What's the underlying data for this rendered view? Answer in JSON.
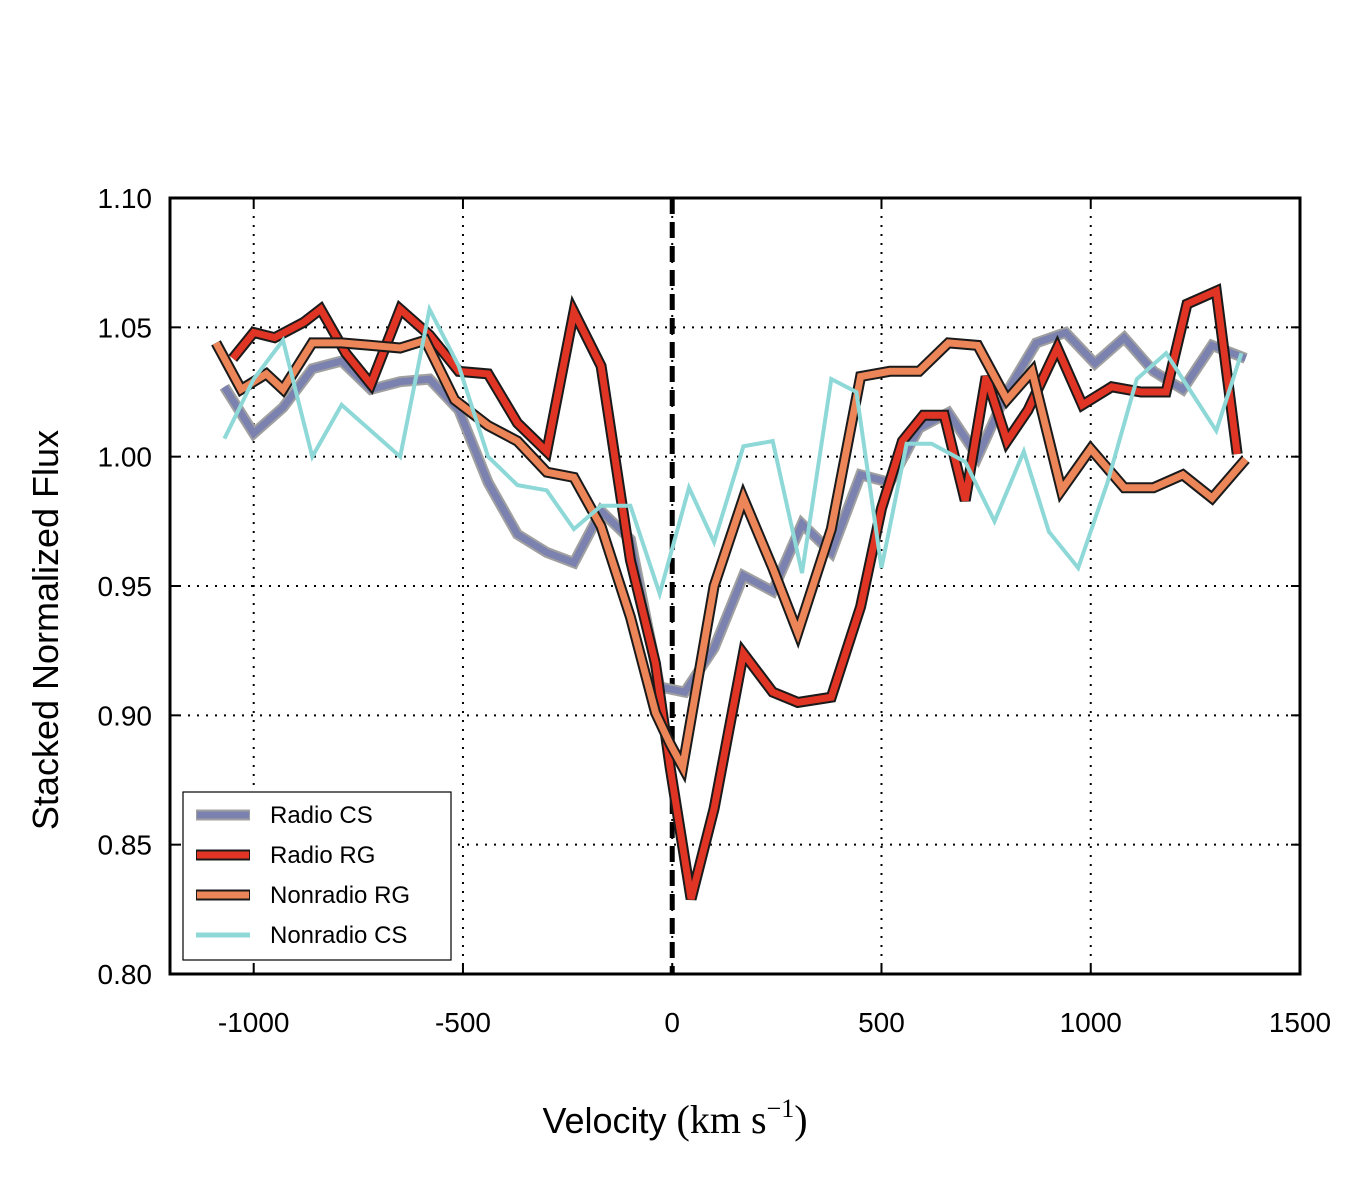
{
  "chart_data": {
    "type": "line",
    "xlabel_text": "Velocity ",
    "xlabel_unit_open": "(km s",
    "xlabel_unit_exp": "−1",
    "xlabel_unit_close": ")",
    "ylabel": "Stacked Normalized Flux",
    "xlim": [
      -1200,
      1500
    ],
    "ylim": [
      0.8,
      1.1
    ],
    "xticks": [
      -1000,
      -500,
      0,
      500,
      1000,
      1500
    ],
    "xtick_labels": [
      "-1000",
      "-500",
      "0",
      "500",
      "1000",
      "1500"
    ],
    "yticks": [
      0.8,
      0.85,
      0.9,
      0.95,
      1.0,
      1.05,
      1.1
    ],
    "ytick_labels": [
      "0.80",
      "0.85",
      "0.90",
      "0.95",
      "1.00",
      "1.05",
      "1.10"
    ],
    "grid": true,
    "vline_x": 0,
    "legend_position": "lower-left",
    "series": [
      {
        "name": "Radio CS",
        "color": "#7b82b0",
        "outline": "#a0a0a0",
        "x": [
          -1070,
          -1000,
          -930,
          -860,
          -790,
          -720,
          -650,
          -580,
          -510,
          -440,
          -370,
          -300,
          -235,
          -170,
          -100,
          -30,
          30,
          100,
          170,
          240,
          310,
          380,
          450,
          520,
          590,
          660,
          730,
          800,
          870,
          940,
          1010,
          1080,
          1150,
          1220,
          1290,
          1370
        ],
        "values": [
          1.027,
          1.009,
          1.019,
          1.034,
          1.037,
          1.026,
          1.029,
          1.03,
          1.018,
          0.99,
          0.97,
          0.963,
          0.959,
          0.979,
          0.968,
          0.911,
          0.909,
          0.926,
          0.954,
          0.948,
          0.974,
          0.963,
          0.993,
          0.99,
          1.011,
          1.017,
          1.0,
          1.025,
          1.044,
          1.048,
          1.036,
          1.046,
          1.033,
          1.026,
          1.043,
          1.038
        ]
      },
      {
        "name": "Radio RG",
        "color": "#e03424",
        "outline": "#1a1a1a",
        "x": [
          -1050,
          -1000,
          -950,
          -880,
          -840,
          -780,
          -720,
          -650,
          -580,
          -510,
          -440,
          -370,
          -300,
          -235,
          -170,
          -100,
          -40,
          -5,
          45,
          100,
          170,
          240,
          300,
          380,
          450,
          500,
          550,
          600,
          650,
          700,
          750,
          800,
          850,
          920,
          980,
          1050,
          1120,
          1180,
          1230,
          1300,
          1350
        ],
        "values": [
          1.038,
          1.048,
          1.046,
          1.052,
          1.057,
          1.04,
          1.028,
          1.057,
          1.047,
          1.033,
          1.032,
          1.013,
          1.002,
          1.056,
          1.035,
          0.96,
          0.92,
          0.88,
          0.829,
          0.864,
          0.924,
          0.909,
          0.905,
          0.907,
          0.942,
          0.98,
          1.006,
          1.016,
          1.016,
          0.983,
          1.031,
          1.006,
          1.018,
          1.042,
          1.02,
          1.027,
          1.025,
          1.025,
          1.059,
          1.064,
          1.001
        ]
      },
      {
        "name": "Nonradio RG",
        "color": "#ec8557",
        "outline": "#1a1a1a",
        "x": [
          -1090,
          -1030,
          -970,
          -930,
          -860,
          -790,
          -720,
          -650,
          -590,
          -520,
          -440,
          -370,
          -300,
          -235,
          -170,
          -100,
          -40,
          -5,
          25,
          100,
          170,
          240,
          300,
          380,
          450,
          520,
          590,
          660,
          730,
          800,
          860,
          930,
          1000,
          1080,
          1150,
          1220,
          1290,
          1370
        ],
        "values": [
          1.044,
          1.026,
          1.032,
          1.026,
          1.044,
          1.044,
          1.043,
          1.042,
          1.045,
          1.022,
          1.012,
          1.006,
          0.994,
          0.992,
          0.973,
          0.938,
          0.901,
          0.889,
          0.88,
          0.95,
          0.984,
          0.957,
          0.932,
          0.972,
          1.031,
          1.033,
          1.033,
          1.044,
          1.043,
          1.022,
          1.033,
          0.987,
          1.003,
          0.988,
          0.988,
          0.993,
          0.984,
          0.999
        ]
      },
      {
        "name": "Nonradio CS",
        "color": "#8ed8d8",
        "outline": null,
        "x": [
          -1070,
          -1000,
          -930,
          -860,
          -790,
          -720,
          -650,
          -580,
          -510,
          -440,
          -370,
          -300,
          -235,
          -170,
          -100,
          -30,
          40,
          100,
          170,
          240,
          310,
          380,
          440,
          500,
          560,
          620,
          700,
          770,
          840,
          900,
          970,
          1040,
          1110,
          1180,
          1240,
          1300,
          1360
        ],
        "values": [
          1.007,
          1.03,
          1.045,
          1.0,
          1.02,
          1.01,
          1.0,
          1.057,
          1.035,
          1.0,
          0.989,
          0.987,
          0.972,
          0.981,
          0.981,
          0.947,
          0.988,
          0.967,
          1.004,
          1.006,
          0.955,
          1.03,
          1.025,
          0.957,
          1.005,
          1.005,
          0.998,
          0.975,
          1.002,
          0.971,
          0.957,
          0.99,
          1.03,
          1.04,
          1.025,
          1.01,
          1.04
        ]
      }
    ]
  }
}
